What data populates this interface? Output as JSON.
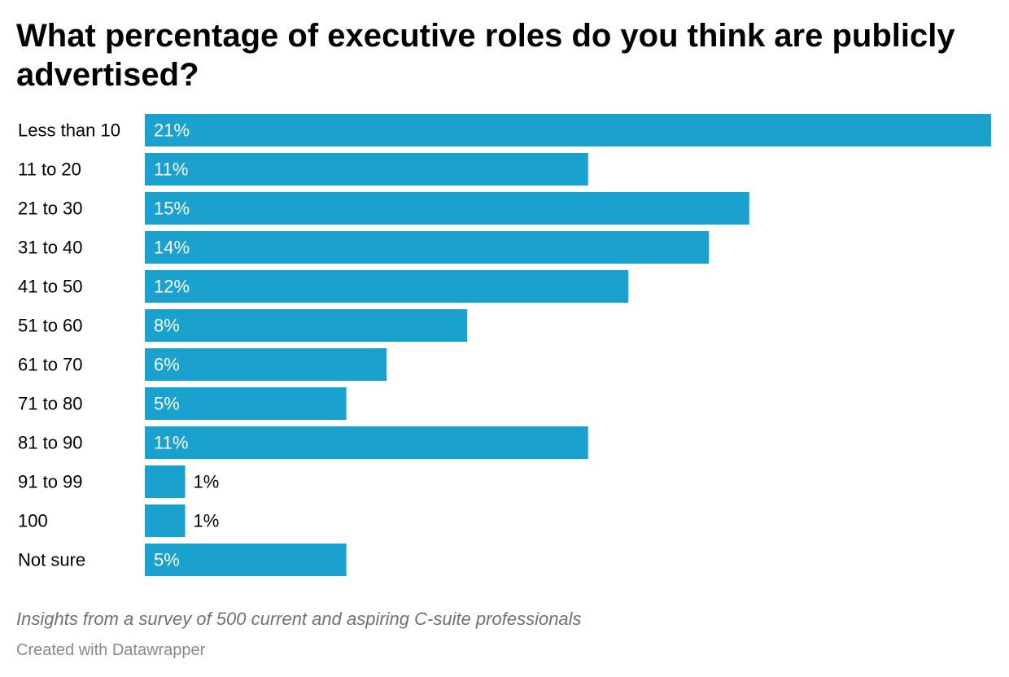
{
  "chart_data": {
    "type": "bar",
    "orientation": "horizontal",
    "title": "What percentage of executive roles do you think are publicly advertised?",
    "categories": [
      "Less than 10",
      "11 to 20",
      "21 to 30",
      "31 to 40",
      "41 to 50",
      "51 to 60",
      "61 to 70",
      "71 to 80",
      "81 to 90",
      "91 to 99",
      "100",
      "Not sure"
    ],
    "values": [
      21,
      11,
      15,
      14,
      12,
      8,
      6,
      5,
      11,
      1,
      1,
      5
    ],
    "value_labels": [
      "21%",
      "11%",
      "15%",
      "14%",
      "12%",
      "8%",
      "6%",
      "5%",
      "11%",
      "1%",
      "1%",
      "5%"
    ],
    "unit": "%",
    "xlim": [
      0,
      21
    ],
    "grid": false,
    "legend": "none",
    "bar_color": "#1aa1ce"
  },
  "notes": "Insights from a survey of 500 current and aspiring C-suite professionals",
  "credit": "Created with Datawrapper"
}
